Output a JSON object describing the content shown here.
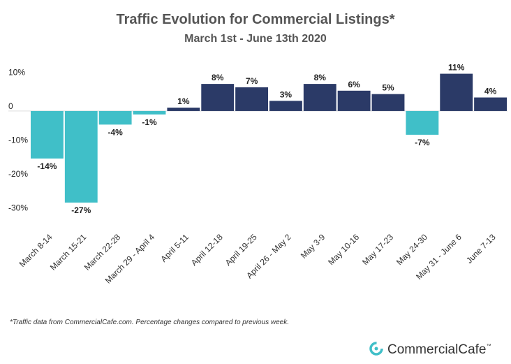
{
  "chart_data": {
    "type": "bar",
    "title": "Traffic Evolution for Commercial Listings*",
    "subtitle": "March 1st - June 13th 2020",
    "categories": [
      "March 8-14",
      "March 15-21",
      "March 22-28",
      "March 29 - April 4",
      "April 5-11",
      "April 12-18",
      "April 19-25",
      "April 26 - May 2",
      "May 3-9",
      "May 10-16",
      "May 17-23",
      "May 24-30",
      "May 31 - June 6",
      "June 7-13"
    ],
    "values": [
      -14,
      -27,
      -4,
      -1,
      1,
      8,
      7,
      3,
      8,
      6,
      5,
      -7,
      11,
      4
    ],
    "value_labels": [
      "-14%",
      "-27%",
      "-4%",
      "-1%",
      "1%",
      "8%",
      "7%",
      "3%",
      "8%",
      "6%",
      "5%",
      "-7%",
      "11%",
      "4%"
    ],
    "positive_color": "#2b3a67",
    "negative_color": "#40bfc8",
    "ylim": [
      -32,
      14
    ],
    "yticks": [
      {
        "value": 10,
        "label": "10%"
      },
      0,
      {
        "value": -10,
        "label": "-10%"
      },
      {
        "value": -20,
        "label": "-20%"
      },
      {
        "value": -30,
        "label": "-30%"
      }
    ],
    "footnote": "*Traffic data from CommercialCafe.com. Percentage changes compared to previous week.",
    "brand": "CommercialCafe",
    "brand_mark": "™"
  }
}
